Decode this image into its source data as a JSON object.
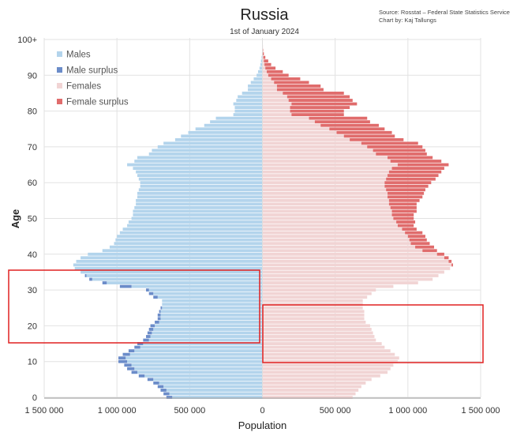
{
  "title": "Russia",
  "subtitle": "1st of January 2024",
  "source_line": "Source: Rosstat – Federal State Statistics Service",
  "credit_line": "Chart by: Kaj Tallungs",
  "chart_data": {
    "type": "bar",
    "orientation": "horizontal-population-pyramid",
    "title": "Russia",
    "subtitle": "1st of January 2024",
    "xlabel": "Population",
    "ylabel": "Age",
    "xlim": [
      -1500000,
      1500000
    ],
    "x_ticks": [
      -1500000,
      -1000000,
      -500000,
      0,
      500000,
      1000000,
      1500000
    ],
    "x_tick_labels": [
      "1 500 000",
      "1 000 000",
      "500 000",
      "0",
      "500 000",
      "1 000 000",
      "1 500 000"
    ],
    "ylim": [
      0,
      100
    ],
    "y_ticks": [
      0,
      10,
      20,
      30,
      40,
      50,
      60,
      70,
      80,
      90,
      100
    ],
    "y_tick_labels": [
      "0",
      "10",
      "20",
      "30",
      "40",
      "50",
      "60",
      "70",
      "80",
      "90",
      "100+"
    ],
    "legend": [
      {
        "name": "Males",
        "color": "#b3d4ec"
      },
      {
        "name": "Male surplus",
        "color": "#6b8cc9"
      },
      {
        "name": "Females",
        "color": "#f1d4d4"
      },
      {
        "name": "Female surplus",
        "color": "#e06c6c"
      }
    ],
    "legend_position": "top-left",
    "colors": {
      "males": "#b3d4ec",
      "male_surplus": "#6b8cc9",
      "females": "#f1d4d4",
      "female_surplus": "#e06c6c"
    },
    "ages": [
      0,
      1,
      2,
      3,
      4,
      5,
      6,
      7,
      8,
      9,
      10,
      11,
      12,
      13,
      14,
      15,
      16,
      17,
      18,
      19,
      20,
      21,
      22,
      23,
      24,
      25,
      26,
      27,
      28,
      29,
      30,
      31,
      32,
      33,
      34,
      35,
      36,
      37,
      38,
      39,
      40,
      41,
      42,
      43,
      44,
      45,
      46,
      47,
      48,
      49,
      50,
      51,
      52,
      53,
      54,
      55,
      56,
      57,
      58,
      59,
      60,
      61,
      62,
      63,
      64,
      65,
      66,
      67,
      68,
      69,
      70,
      71,
      72,
      73,
      74,
      75,
      76,
      77,
      78,
      79,
      80,
      81,
      82,
      83,
      84,
      85,
      86,
      87,
      88,
      89,
      90,
      91,
      92,
      93,
      94,
      95,
      96,
      97,
      98,
      99,
      100
    ],
    "series": [
      {
        "name": "Males",
        "values": [
          660000,
          680000,
          700000,
          720000,
          750000,
          790000,
          850000,
          900000,
          930000,
          950000,
          990000,
          990000,
          960000,
          920000,
          880000,
          860000,
          820000,
          800000,
          790000,
          780000,
          770000,
          740000,
          720000,
          720000,
          710000,
          700000,
          690000,
          690000,
          750000,
          780000,
          800000,
          980000,
          1100000,
          1190000,
          1220000,
          1250000,
          1290000,
          1300000,
          1280000,
          1250000,
          1200000,
          1100000,
          1050000,
          1020000,
          1010000,
          1000000,
          980000,
          960000,
          930000,
          920000,
          900000,
          890000,
          890000,
          880000,
          870000,
          870000,
          860000,
          860000,
          850000,
          840000,
          840000,
          850000,
          860000,
          870000,
          890000,
          930000,
          880000,
          860000,
          780000,
          760000,
          720000,
          680000,
          600000,
          560000,
          510000,
          460000,
          400000,
          360000,
          320000,
          200000,
          190000,
          190000,
          200000,
          180000,
          170000,
          140000,
          100000,
          100000,
          80000,
          60000,
          40000,
          30000,
          20000,
          14000,
          10000,
          6000,
          3000,
          2000,
          1000,
          1000,
          1000
        ]
      },
      {
        "name": "Females",
        "values": [
          620000,
          640000,
          660000,
          680000,
          710000,
          750000,
          810000,
          860000,
          880000,
          900000,
          930000,
          940000,
          910000,
          880000,
          840000,
          820000,
          780000,
          770000,
          760000,
          750000,
          740000,
          710000,
          700000,
          700000,
          700000,
          690000,
          690000,
          690000,
          720000,
          750000,
          780000,
          900000,
          1070000,
          1170000,
          1210000,
          1250000,
          1290000,
          1310000,
          1300000,
          1280000,
          1250000,
          1200000,
          1180000,
          1150000,
          1130000,
          1120000,
          1100000,
          1060000,
          1040000,
          1050000,
          1040000,
          1040000,
          1060000,
          1060000,
          1060000,
          1080000,
          1100000,
          1110000,
          1120000,
          1140000,
          1160000,
          1190000,
          1210000,
          1230000,
          1250000,
          1280000,
          1230000,
          1170000,
          1130000,
          1120000,
          1100000,
          1070000,
          970000,
          910000,
          890000,
          840000,
          800000,
          740000,
          720000,
          560000,
          560000,
          600000,
          650000,
          620000,
          600000,
          560000,
          420000,
          400000,
          320000,
          260000,
          180000,
          140000,
          90000,
          60000,
          40000,
          20000,
          10000,
          5000,
          3000,
          2000,
          1000
        ]
      }
    ],
    "annotations": [
      "red rectangle highlighting male bars for ages ~15–35",
      "red rectangle highlighting female bars for ages ~10–26"
    ]
  }
}
